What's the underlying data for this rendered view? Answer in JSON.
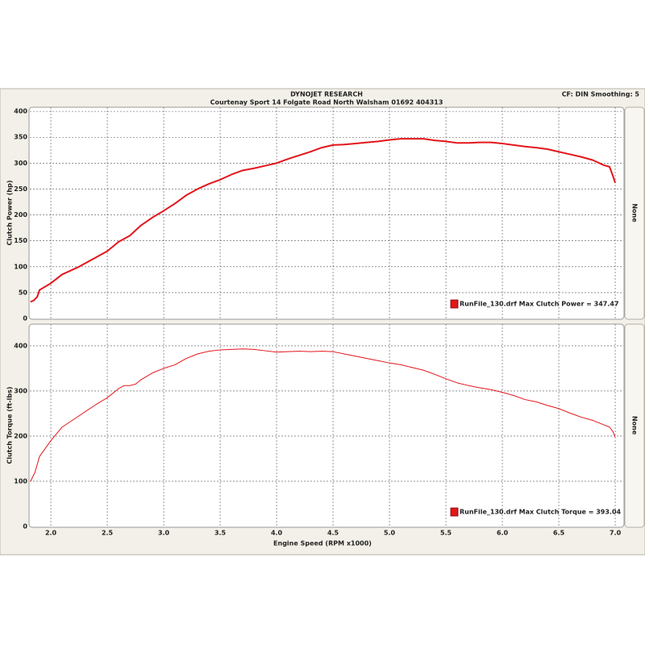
{
  "chart_data": [
    {
      "type": "line",
      "title": "DYNOJET RESEARCH",
      "subtitle": "Courtenay Sport 14 Folgate Road North Walsham 01692 404313",
      "annotation": "CF: DIN  Smoothing: 5",
      "ylabel": "Clutch Power (hp)",
      "y2label": "None",
      "x": [
        1.82,
        1.85,
        1.88,
        1.9,
        2.0,
        2.1,
        2.25,
        2.4,
        2.5,
        2.6,
        2.7,
        2.8,
        2.9,
        3.0,
        3.1,
        3.2,
        3.3,
        3.4,
        3.5,
        3.6,
        3.7,
        3.8,
        3.9,
        4.0,
        4.1,
        4.2,
        4.3,
        4.4,
        4.5,
        4.6,
        4.7,
        4.8,
        4.9,
        5.0,
        5.1,
        5.2,
        5.3,
        5.4,
        5.5,
        5.6,
        5.7,
        5.8,
        5.9,
        6.0,
        6.1,
        6.2,
        6.3,
        6.4,
        6.5,
        6.6,
        6.7,
        6.8,
        6.9,
        6.95,
        6.98,
        7.0
      ],
      "series": [
        {
          "name": "RunFile_130.drf Max Clutch Power = 347.47",
          "color": "#e3161c",
          "linewidth": 2,
          "values": [
            32,
            35,
            42,
            55,
            68,
            85,
            100,
            118,
            130,
            148,
            160,
            180,
            195,
            208,
            222,
            238,
            250,
            260,
            268,
            278,
            286,
            290,
            295,
            300,
            308,
            315,
            322,
            330,
            335,
            336,
            338,
            340,
            342,
            345,
            347,
            347,
            347,
            344,
            342,
            339,
            339,
            340,
            340,
            338,
            335,
            332,
            330,
            327,
            322,
            317,
            312,
            306,
            296,
            293,
            275,
            262
          ]
        }
      ],
      "xlim": [
        1.814,
        7.071
      ],
      "ylim": [
        0,
        408
      ],
      "yticks": [
        0,
        50,
        100,
        150,
        200,
        250,
        300,
        350,
        400
      ],
      "grid": true,
      "legend": "lower right"
    },
    {
      "type": "line",
      "ylabel": "Clutch Torque (ft-lbs)",
      "y2label": "None",
      "xlabel": "Engine Speed (RPM x1000)",
      "x": [
        1.82,
        1.86,
        1.9,
        2.0,
        2.1,
        2.25,
        2.4,
        2.5,
        2.6,
        2.65,
        2.7,
        2.75,
        2.8,
        2.9,
        3.0,
        3.1,
        3.2,
        3.3,
        3.4,
        3.5,
        3.6,
        3.7,
        3.8,
        3.9,
        4.0,
        4.1,
        4.2,
        4.3,
        4.4,
        4.5,
        4.6,
        4.7,
        4.8,
        4.9,
        5.0,
        5.1,
        5.2,
        5.3,
        5.4,
        5.5,
        5.6,
        5.7,
        5.8,
        5.9,
        6.0,
        6.1,
        6.2,
        6.3,
        6.4,
        6.5,
        6.6,
        6.7,
        6.8,
        6.9,
        6.95,
        6.98,
        7.0
      ],
      "series": [
        {
          "name": "RunFile_130.drf Max Clutch Torque = 393.04",
          "color": "#e3161c",
          "linewidth": 1,
          "values": [
            100,
            120,
            155,
            190,
            220,
            245,
            270,
            285,
            305,
            312,
            312,
            315,
            325,
            340,
            350,
            358,
            372,
            382,
            388,
            391,
            392,
            393,
            392,
            389,
            386,
            387,
            388,
            387,
            388,
            387,
            382,
            377,
            372,
            367,
            362,
            358,
            352,
            346,
            337,
            327,
            318,
            312,
            307,
            303,
            297,
            290,
            281,
            276,
            268,
            261,
            251,
            242,
            235,
            225,
            220,
            210,
            198
          ]
        }
      ],
      "xlim": [
        1.814,
        7.071
      ],
      "xticks": [
        {
          "value": 2,
          "label": "2.0"
        },
        2.5,
        {
          "value": 3,
          "label": "3.0"
        },
        3.5,
        {
          "value": 4,
          "label": "4.0"
        },
        4.5,
        {
          "value": 5,
          "label": "5.0"
        },
        5.5,
        {
          "value": 6,
          "label": "6.0"
        },
        6.5,
        {
          "value": 7,
          "label": "7.0"
        }
      ],
      "ylim": [
        0,
        448
      ],
      "yticks": [
        0,
        100,
        200,
        300,
        400
      ],
      "grid": true,
      "legend": "lower right"
    }
  ]
}
